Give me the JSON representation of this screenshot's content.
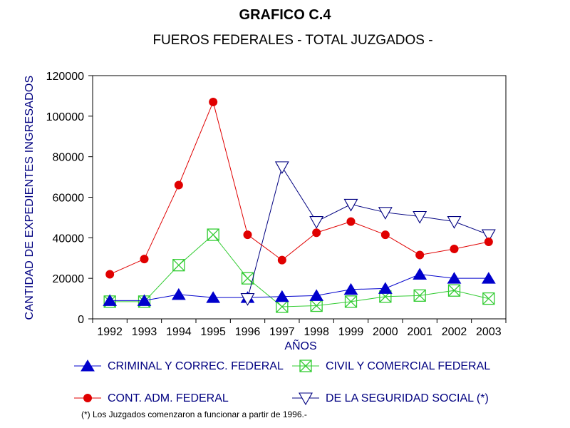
{
  "chart_data": {
    "type": "line",
    "title": "GRAFICO C.4",
    "subtitle": "FUEROS FEDERALES  - TOTAL JUZGADOS -",
    "xlabel": "AÑOS",
    "ylabel": "CANTIDAD DE EXPEDIENTES INGRESADOS",
    "ylim": [
      0,
      120000
    ],
    "yticks": [
      "0",
      "20000",
      "40000",
      "60000",
      "80000",
      "100000",
      "120000"
    ],
    "categories": [
      "1992",
      "1993",
      "1994",
      "1995",
      "1996",
      "1997",
      "1998",
      "1999",
      "2000",
      "2001",
      "2002",
      "2003"
    ],
    "grid": false,
    "legend_position": "bottom",
    "series": [
      {
        "name": "CRIMINAL Y CORREC. FEDERAL",
        "color": "#0000cc",
        "marker": "triangle-up-filled",
        "values": [
          9000,
          9000,
          12000,
          10500,
          10500,
          11000,
          11500,
          14500,
          15000,
          22000,
          20000,
          20000
        ]
      },
      {
        "name": "CIVIL Y COMERCIAL FEDERAL",
        "color": "#33cc33",
        "marker": "box-x",
        "values": [
          8500,
          8500,
          26500,
          41500,
          20000,
          6000,
          6500,
          8500,
          11000,
          11500,
          14000,
          10000
        ]
      },
      {
        "name": "CONT. ADM. FEDERAL",
        "color": "#e00000",
        "marker": "circle-filled",
        "values": [
          22000,
          29500,
          66000,
          107000,
          41500,
          29000,
          42500,
          48000,
          41500,
          31500,
          34500,
          38000
        ]
      },
      {
        "name": "DE LA SEGURIDAD SOCIAL (*)",
        "color": "#000080",
        "marker": "triangle-down-open",
        "values": [
          null,
          null,
          null,
          null,
          10000,
          75000,
          48000,
          56500,
          52500,
          50500,
          48000,
          41500
        ]
      }
    ],
    "footnote": "(*) Los Juzgados comenzaron a funcionar a partir de 1996.-"
  }
}
